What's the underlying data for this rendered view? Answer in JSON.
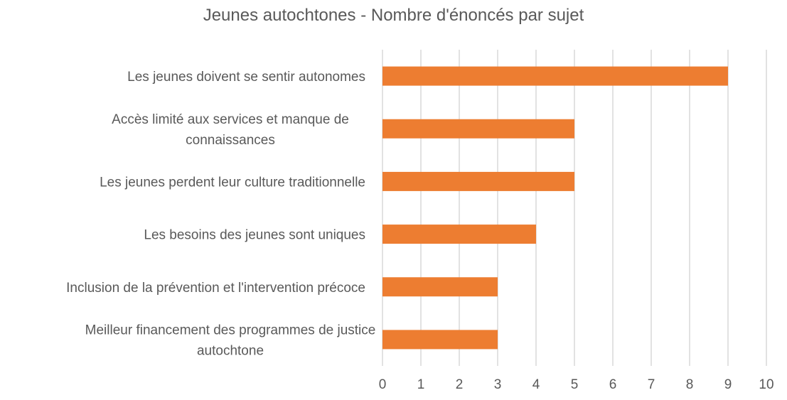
{
  "chart_data": {
    "type": "bar",
    "orientation": "horizontal",
    "title": "Jeunes autochtones - Nombre d'énoncés par sujet",
    "categories": [
      "Les jeunes doivent se sentir autonomes",
      "Accès limité aux services et manque de connaissances",
      "Les jeunes perdent leur culture traditionnelle",
      "Les besoins des jeunes sont uniques",
      "Inclusion de la prévention et l'intervention précoce",
      "Meilleur financement des programmes de justice autochtone"
    ],
    "category_lines": [
      [
        "Les jeunes doivent se sentir autonomes"
      ],
      [
        "Accès limité aux services et manque de",
        "connaissances"
      ],
      [
        "Les jeunes perdent leur culture traditionnelle"
      ],
      [
        "Les besoins des jeunes sont uniques"
      ],
      [
        "Inclusion de la prévention et l'intervention précoce"
      ],
      [
        "Meilleur financement des programmes de justice",
        "autochtone"
      ]
    ],
    "values": [
      9,
      5,
      5,
      4,
      3,
      3
    ],
    "xlim": [
      0,
      10
    ],
    "xticks": [
      "0",
      "1",
      "2",
      "3",
      "4",
      "5",
      "6",
      "7",
      "8",
      "9",
      "10"
    ],
    "bar_color": "#ED7D31",
    "grid": true,
    "grid_color": "#D9D9D9",
    "text_color": "#595959"
  }
}
